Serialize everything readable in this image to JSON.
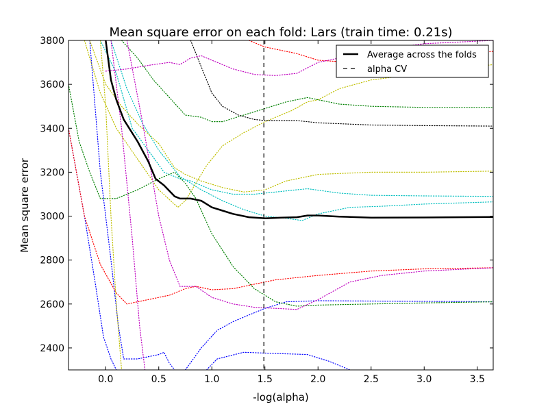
{
  "chart_data": {
    "type": "line",
    "title": "Mean square error on each fold: Lars (train time: 0.21s)",
    "xlabel": "-log(alpha)",
    "ylabel": "Mean square error",
    "xlim": [
      -0.35,
      3.65
    ],
    "ylim": [
      2300,
      3800
    ],
    "xticks": [
      0.0,
      0.5,
      1.0,
      1.5,
      2.0,
      2.5,
      3.0,
      3.5
    ],
    "xtick_labels": [
      "0.0",
      "0.5",
      "1.0",
      "1.5",
      "2.0",
      "2.5",
      "3.0",
      "3.5"
    ],
    "yticks": [
      2400,
      2600,
      2800,
      3000,
      3200,
      3400,
      3600,
      3800
    ],
    "ytick_labels": [
      "2400",
      "2600",
      "2800",
      "3000",
      "3200",
      "3400",
      "3600",
      "3800"
    ],
    "grid": false,
    "legend": {
      "position": "top-right",
      "entries": [
        {
          "label": "Average across the folds",
          "style": "solid",
          "color": "#000000"
        },
        {
          "label": "alpha CV",
          "style": "dashed",
          "color": "#000000"
        }
      ]
    },
    "alpha_cv": 1.49,
    "average": {
      "color": "#000000",
      "points": [
        [
          0.0,
          3800
        ],
        [
          0.05,
          3620
        ],
        [
          0.1,
          3530
        ],
        [
          0.17,
          3440
        ],
        [
          0.3,
          3340
        ],
        [
          0.4,
          3250
        ],
        [
          0.47,
          3170
        ],
        [
          0.55,
          3140
        ],
        [
          0.65,
          3090
        ],
        [
          0.7,
          3080
        ],
        [
          0.8,
          3080
        ],
        [
          0.9,
          3070
        ],
        [
          1.0,
          3040
        ],
        [
          1.1,
          3025
        ],
        [
          1.2,
          3010
        ],
        [
          1.35,
          2995
        ],
        [
          1.5,
          2990
        ],
        [
          1.65,
          2993
        ],
        [
          1.8,
          2995
        ],
        [
          1.9,
          3003
        ],
        [
          2.0,
          3003
        ],
        [
          2.2,
          2998
        ],
        [
          2.5,
          2993
        ],
        [
          3.0,
          2994
        ],
        [
          3.65,
          2996
        ]
      ]
    },
    "folds": [
      {
        "color": "#0000ff",
        "points": [
          [
            -0.35,
            3400
          ],
          [
            -0.2,
            3000
          ],
          [
            -0.1,
            2700
          ],
          [
            -0.02,
            2450
          ],
          [
            0.05,
            2350
          ],
          [
            0.1,
            2300
          ]
        ]
      },
      {
        "color": "#0000ff",
        "points": [
          [
            0.95,
            2300
          ],
          [
            1.05,
            2350
          ],
          [
            1.3,
            2380
          ],
          [
            1.6,
            2375
          ],
          [
            1.9,
            2370
          ],
          [
            2.1,
            2340
          ],
          [
            2.3,
            2300
          ]
        ]
      },
      {
        "color": "#0000ff",
        "points": [
          [
            -0.15,
            3800
          ],
          [
            -0.05,
            3200
          ],
          [
            0.05,
            2800
          ],
          [
            0.12,
            2500
          ],
          [
            0.17,
            2350
          ],
          [
            0.3,
            2350
          ],
          [
            0.5,
            2370
          ],
          [
            0.55,
            2380
          ],
          [
            0.6,
            2330
          ],
          [
            0.65,
            2300
          ]
        ]
      },
      {
        "color": "#0000ff",
        "points": [
          [
            0.75,
            2300
          ],
          [
            0.9,
            2400
          ],
          [
            1.05,
            2480
          ],
          [
            1.2,
            2520
          ],
          [
            1.4,
            2560
          ],
          [
            1.5,
            2580
          ],
          [
            1.7,
            2610
          ],
          [
            2.0,
            2615
          ],
          [
            3.65,
            2610
          ]
        ]
      },
      {
        "color": "#00bfbf",
        "points": [
          [
            -0.05,
            3800
          ],
          [
            0.1,
            3650
          ],
          [
            0.25,
            3400
          ],
          [
            0.4,
            3300
          ],
          [
            0.55,
            3200
          ],
          [
            0.7,
            3170
          ],
          [
            0.8,
            3160
          ],
          [
            1.0,
            3120
          ],
          [
            1.2,
            3100
          ],
          [
            1.4,
            3100
          ],
          [
            1.6,
            3110
          ],
          [
            1.9,
            3125
          ],
          [
            2.2,
            3105
          ],
          [
            2.5,
            3095
          ],
          [
            3.0,
            3092
          ],
          [
            3.65,
            3090
          ]
        ]
      },
      {
        "color": "#00bfbf",
        "points": [
          [
            0.05,
            3800
          ],
          [
            0.2,
            3580
          ],
          [
            0.35,
            3420
          ],
          [
            0.5,
            3300
          ],
          [
            0.7,
            3180
          ],
          [
            0.9,
            3120
          ],
          [
            1.1,
            3070
          ],
          [
            1.3,
            3030
          ],
          [
            1.5,
            3000
          ],
          [
            1.7,
            2990
          ],
          [
            1.85,
            2980
          ],
          [
            2.0,
            3010
          ],
          [
            2.3,
            3040
          ],
          [
            2.6,
            3045
          ],
          [
            3.0,
            3055
          ],
          [
            3.65,
            3065
          ]
        ]
      },
      {
        "color": "#bfbf00",
        "points": [
          [
            -0.15,
            3800
          ],
          [
            0.0,
            3600
          ],
          [
            0.15,
            3500
          ],
          [
            0.3,
            3420
          ],
          [
            0.5,
            3330
          ],
          [
            0.65,
            3220
          ],
          [
            0.75,
            3190
          ],
          [
            0.9,
            3160
          ],
          [
            1.1,
            3130
          ],
          [
            1.3,
            3110
          ],
          [
            1.5,
            3120
          ],
          [
            1.7,
            3160
          ],
          [
            2.0,
            3190
          ],
          [
            2.5,
            3200
          ],
          [
            3.0,
            3200
          ],
          [
            3.65,
            3205
          ]
        ]
      },
      {
        "color": "#bfbf00",
        "points": [
          [
            -0.2,
            3800
          ],
          [
            -0.05,
            3560
          ],
          [
            0.1,
            3400
          ],
          [
            0.3,
            3260
          ],
          [
            0.5,
            3120
          ],
          [
            0.68,
            3040
          ],
          [
            0.75,
            3070
          ],
          [
            0.85,
            3150
          ],
          [
            0.95,
            3230
          ],
          [
            1.1,
            3320
          ],
          [
            1.3,
            3380
          ],
          [
            1.5,
            3430
          ],
          [
            1.75,
            3480
          ],
          [
            1.9,
            3520
          ],
          [
            2.0,
            3530
          ],
          [
            2.2,
            3580
          ],
          [
            2.5,
            3620
          ],
          [
            3.0,
            3650
          ],
          [
            3.65,
            3690
          ]
        ]
      },
      {
        "color": "#008000",
        "points": [
          [
            -0.35,
            3600
          ],
          [
            -0.25,
            3340
          ],
          [
            -0.15,
            3200
          ],
          [
            -0.05,
            3080
          ],
          [
            0.1,
            3080
          ],
          [
            0.3,
            3120
          ],
          [
            0.5,
            3170
          ],
          [
            0.65,
            3200
          ],
          [
            0.75,
            3150
          ],
          [
            0.85,
            3080
          ],
          [
            1.0,
            2920
          ],
          [
            1.2,
            2770
          ],
          [
            1.4,
            2670
          ],
          [
            1.6,
            2610
          ],
          [
            1.8,
            2590
          ],
          [
            2.0,
            2595
          ],
          [
            2.5,
            2600
          ],
          [
            3.0,
            2605
          ],
          [
            3.65,
            2610
          ]
        ]
      },
      {
        "color": "#008000",
        "points": [
          [
            0.15,
            3800
          ],
          [
            0.3,
            3720
          ],
          [
            0.45,
            3620
          ],
          [
            0.6,
            3540
          ],
          [
            0.75,
            3460
          ],
          [
            0.9,
            3450
          ],
          [
            1.0,
            3430
          ],
          [
            1.1,
            3430
          ],
          [
            1.3,
            3460
          ],
          [
            1.5,
            3490
          ],
          [
            1.7,
            3520
          ],
          [
            1.9,
            3540
          ],
          [
            2.2,
            3510
          ],
          [
            2.5,
            3500
          ],
          [
            3.0,
            3495
          ],
          [
            3.65,
            3495
          ]
        ]
      },
      {
        "color": "#000000",
        "points": [
          [
            0.8,
            3800
          ],
          [
            0.9,
            3680
          ],
          [
            1.0,
            3560
          ],
          [
            1.1,
            3500
          ],
          [
            1.25,
            3460
          ],
          [
            1.4,
            3440
          ],
          [
            1.5,
            3435
          ],
          [
            1.8,
            3435
          ],
          [
            2.0,
            3425
          ],
          [
            2.5,
            3415
          ],
          [
            3.0,
            3412
          ],
          [
            3.65,
            3410
          ]
        ]
      },
      {
        "color": "#ff0000",
        "points": [
          [
            -0.35,
            3400
          ],
          [
            -0.2,
            3000
          ],
          [
            -0.05,
            2780
          ],
          [
            0.1,
            2650
          ],
          [
            0.2,
            2600
          ],
          [
            0.4,
            2620
          ],
          [
            0.6,
            2640
          ],
          [
            0.75,
            2670
          ],
          [
            0.85,
            2680
          ],
          [
            1.0,
            2665
          ],
          [
            1.2,
            2670
          ],
          [
            1.4,
            2690
          ],
          [
            1.6,
            2710
          ],
          [
            2.0,
            2730
          ],
          [
            2.5,
            2750
          ],
          [
            3.0,
            2760
          ],
          [
            3.65,
            2765
          ]
        ]
      },
      {
        "color": "#ff0000",
        "points": [
          [
            1.35,
            3800
          ],
          [
            1.5,
            3770
          ],
          [
            1.8,
            3740
          ],
          [
            2.0,
            3710
          ],
          [
            2.3,
            3700
          ],
          [
            2.6,
            3710
          ],
          [
            3.0,
            3730
          ],
          [
            3.65,
            3750
          ]
        ]
      },
      {
        "color": "#bf00bf",
        "points": [
          [
            0.0,
            3660
          ],
          [
            0.2,
            3670
          ],
          [
            0.45,
            3690
          ],
          [
            0.6,
            3700
          ],
          [
            0.7,
            3690
          ],
          [
            0.8,
            3720
          ],
          [
            0.9,
            3730
          ],
          [
            1.0,
            3710
          ],
          [
            1.2,
            3670
          ],
          [
            1.4,
            3645
          ],
          [
            1.6,
            3640
          ],
          [
            1.8,
            3650
          ],
          [
            2.0,
            3700
          ],
          [
            2.3,
            3730
          ],
          [
            2.6,
            3760
          ],
          [
            3.0,
            3785
          ],
          [
            3.65,
            3800
          ]
        ]
      },
      {
        "color": "#bf00bf",
        "points": [
          [
            0.2,
            3800
          ],
          [
            0.35,
            3420
          ],
          [
            0.5,
            3000
          ],
          [
            0.6,
            2800
          ],
          [
            0.7,
            2680
          ],
          [
            0.85,
            2680
          ],
          [
            1.0,
            2630
          ],
          [
            1.2,
            2600
          ],
          [
            1.4,
            2585
          ],
          [
            1.6,
            2580
          ],
          [
            1.8,
            2575
          ],
          [
            2.0,
            2620
          ],
          [
            2.3,
            2700
          ],
          [
            2.6,
            2730
          ],
          [
            3.0,
            2750
          ],
          [
            3.65,
            2765
          ]
        ]
      },
      {
        "color": "#bf00bf",
        "points": [
          [
            0.05,
            3800
          ],
          [
            0.15,
            3400
          ],
          [
            0.25,
            2900
          ],
          [
            0.32,
            2500
          ],
          [
            0.37,
            2300
          ]
        ]
      },
      {
        "color": "#bfbf00",
        "points": [
          [
            -0.05,
            3800
          ],
          [
            0.0,
            3500
          ],
          [
            0.05,
            3000
          ],
          [
            0.1,
            2600
          ],
          [
            0.15,
            2300
          ]
        ]
      }
    ]
  }
}
